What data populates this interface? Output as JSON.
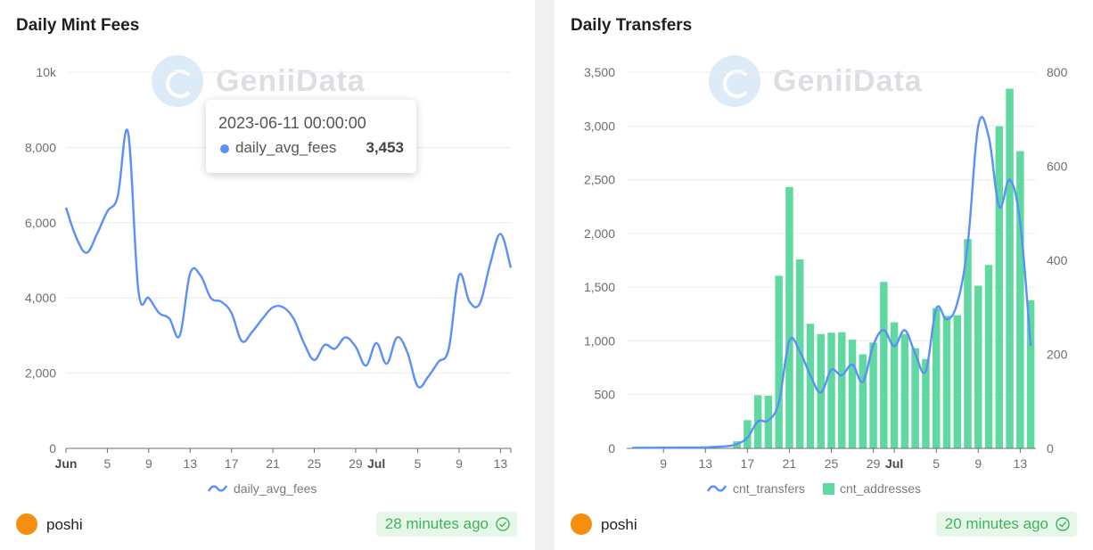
{
  "left": {
    "title": "Daily Mint Fees",
    "watermark": "GeniiData",
    "author": "poshi",
    "updated": "28 minutes ago",
    "tooltip": {
      "date": "2023-06-11 00:00:00",
      "series": "daily_avg_fees",
      "value": "3,453"
    },
    "legend": "daily_avg_fees"
  },
  "right": {
    "title": "Daily Transfers",
    "watermark": "GeniiData",
    "author": "poshi",
    "updated": "20 minutes ago",
    "legend": {
      "line": "cnt_transfers",
      "bar": "cnt_addresses"
    }
  },
  "colors": {
    "line": "#5b8ff9",
    "bar": "#5fd9a0",
    "accent_green": "#3fb35a",
    "avatar": "#f5900e"
  },
  "chart_data": [
    {
      "type": "line",
      "title": "Daily Mint Fees",
      "x": [
        "2023-06-01",
        "2023-06-02",
        "2023-06-03",
        "2023-06-04",
        "2023-06-05",
        "2023-06-06",
        "2023-06-07",
        "2023-06-08",
        "2023-06-09",
        "2023-06-10",
        "2023-06-11",
        "2023-06-12",
        "2023-06-13",
        "2023-06-14",
        "2023-06-15",
        "2023-06-16",
        "2023-06-17",
        "2023-06-18",
        "2023-06-19",
        "2023-06-20",
        "2023-06-21",
        "2023-06-22",
        "2023-06-23",
        "2023-06-24",
        "2023-06-25",
        "2023-06-26",
        "2023-06-27",
        "2023-06-28",
        "2023-06-29",
        "2023-06-30",
        "2023-07-01",
        "2023-07-02",
        "2023-07-03",
        "2023-07-04",
        "2023-07-05",
        "2023-07-06",
        "2023-07-07",
        "2023-07-08",
        "2023-07-09",
        "2023-07-10",
        "2023-07-11",
        "2023-07-12",
        "2023-07-13",
        "2023-07-14"
      ],
      "series": [
        {
          "name": "daily_avg_fees",
          "values": [
            6400,
            5600,
            5200,
            5700,
            6300,
            6700,
            8400,
            4200,
            4000,
            3600,
            3450,
            3000,
            4650,
            4600,
            4000,
            3900,
            3600,
            2850,
            3100,
            3450,
            3750,
            3750,
            3450,
            2800,
            2350,
            2750,
            2650,
            2950,
            2700,
            2200,
            2800,
            2250,
            2950,
            2550,
            1650,
            1900,
            2300,
            2650,
            4600,
            3900,
            3850,
            4900,
            5700,
            4800
          ]
        }
      ],
      "x_ticks": [
        "Jun",
        "5",
        "9",
        "13",
        "17",
        "21",
        "25",
        "29",
        "Jul",
        "5",
        "9",
        "13"
      ],
      "y_ticks": [
        "0",
        "2,000",
        "4,000",
        "6,000",
        "8,000",
        "10k"
      ],
      "ylim": [
        0,
        10000
      ],
      "legend_position": "bottom"
    },
    {
      "type": "bar",
      "title": "Daily Transfers",
      "x": [
        "2023-06-06",
        "2023-06-07",
        "2023-06-08",
        "2023-06-09",
        "2023-06-10",
        "2023-06-11",
        "2023-06-12",
        "2023-06-13",
        "2023-06-14",
        "2023-06-15",
        "2023-06-16",
        "2023-06-17",
        "2023-06-18",
        "2023-06-19",
        "2023-06-20",
        "2023-06-21",
        "2023-06-22",
        "2023-06-23",
        "2023-06-24",
        "2023-06-25",
        "2023-06-26",
        "2023-06-27",
        "2023-06-28",
        "2023-06-29",
        "2023-06-30",
        "2023-07-01",
        "2023-07-02",
        "2023-07-03",
        "2023-07-04",
        "2023-07-05",
        "2023-07-06",
        "2023-07-07",
        "2023-07-08",
        "2023-07-09",
        "2023-07-10",
        "2023-07-11",
        "2023-07-12",
        "2023-07-13",
        "2023-07-14"
      ],
      "series": [
        {
          "name": "cnt_transfers",
          "type": "line",
          "axis": "left",
          "values": [
            5,
            6,
            6,
            7,
            7,
            8,
            8,
            10,
            15,
            20,
            40,
            100,
            250,
            260,
            430,
            1000,
            900,
            680,
            520,
            730,
            680,
            780,
            620,
            960,
            1100,
            950,
            1100,
            880,
            720,
            1300,
            1200,
            1350,
            1900,
            3000,
            2900,
            2250,
            2500,
            2100,
            950
          ]
        },
        {
          "name": "cnt_addresses",
          "type": "bar",
          "axis": "right",
          "values": [
            0,
            0,
            0,
            0,
            0,
            0,
            0,
            0,
            0,
            0,
            15,
            60,
            113,
            112,
            367,
            556,
            402,
            265,
            243,
            246,
            247,
            231,
            200,
            225,
            354,
            268,
            243,
            213,
            190,
            298,
            282,
            283,
            445,
            346,
            390,
            685,
            765,
            632,
            315
          ]
        }
      ],
      "x_ticks": [
        "9",
        "13",
        "17",
        "21",
        "25",
        "29",
        "Jul",
        "5",
        "9",
        "13"
      ],
      "y_ticks_left": [
        "0",
        "500",
        "1,000",
        "1,500",
        "2,000",
        "2,500",
        "3,000",
        "3,500"
      ],
      "y_ticks_right": [
        "0",
        "200",
        "400",
        "600",
        "800"
      ],
      "ylim_left": [
        0,
        3500
      ],
      "ylim_right": [
        0,
        800
      ],
      "legend_position": "bottom"
    }
  ]
}
